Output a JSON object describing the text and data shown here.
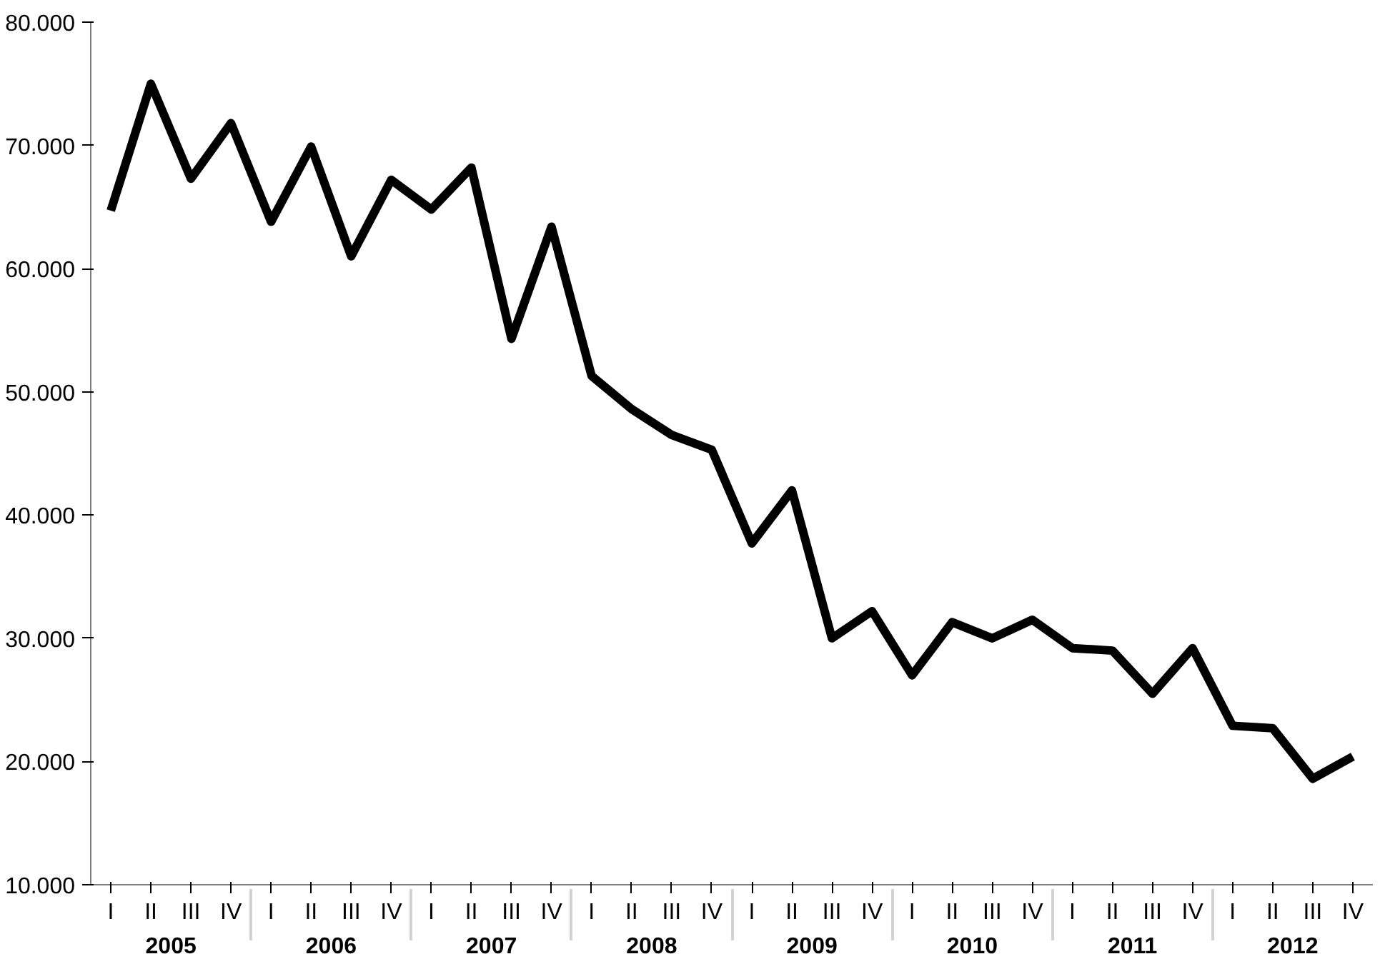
{
  "chart_data": {
    "type": "line",
    "categories": [
      "I",
      "II",
      "III",
      "IV",
      "I",
      "II",
      "III",
      "IV",
      "I",
      "II",
      "III",
      "IV",
      "I",
      "II",
      "III",
      "IV",
      "I",
      "II",
      "III",
      "IV",
      "I",
      "II",
      "III",
      "IV",
      "I",
      "II",
      "III",
      "IV",
      "I",
      "II",
      "III",
      "IV"
    ],
    "annotations": [
      "2005",
      "2006",
      "2007",
      "2008",
      "2009",
      "2010",
      "2011",
      "2012"
    ],
    "series": [
      {
        "color": "#000000",
        "values": [
          64700,
          75000,
          67300,
          71800,
          63800,
          69900,
          61000,
          67200,
          64800,
          68200,
          54300,
          63400,
          51300,
          48600,
          46500,
          45300,
          37700,
          42000,
          30000,
          32200,
          27000,
          31300,
          30000,
          31500,
          29200,
          29000,
          25500,
          29200,
          22900,
          22700,
          18600,
          20400
        ]
      }
    ],
    "ylim": [
      10000,
      80000
    ],
    "yticks": [
      {
        "value": 10000,
        "label": "10.000"
      },
      {
        "value": 20000,
        "label": "20.000"
      },
      {
        "value": 30000,
        "label": "30.000"
      },
      {
        "value": 40000,
        "label": "40.000"
      },
      {
        "value": 50000,
        "label": "50.000"
      },
      {
        "value": 60000,
        "label": "60.000"
      },
      {
        "value": 70000,
        "label": "70.000"
      },
      {
        "value": 80000,
        "label": "80.000"
      }
    ],
    "grid": false,
    "marker": "none",
    "line_style": "solid"
  }
}
